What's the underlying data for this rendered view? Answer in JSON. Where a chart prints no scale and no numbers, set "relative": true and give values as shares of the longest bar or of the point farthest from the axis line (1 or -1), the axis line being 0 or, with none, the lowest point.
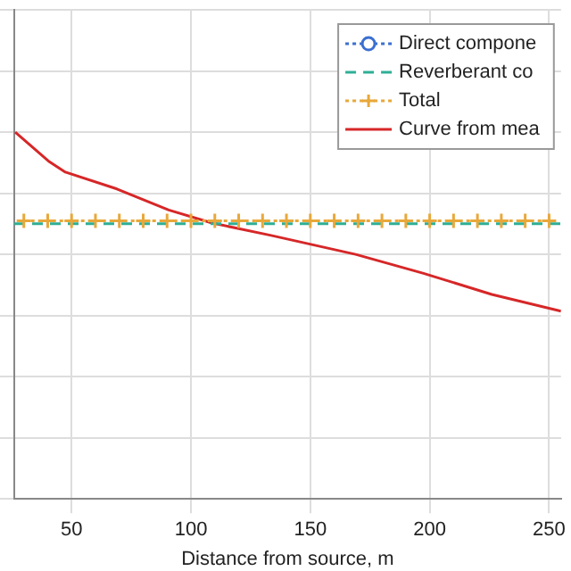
{
  "chart_data": {
    "type": "line",
    "relative": true,
    "xlabel": "Distance from source, m",
    "xlim": [
      26,
      255
    ],
    "xticks": [
      50,
      100,
      150,
      200,
      250
    ],
    "grid": true,
    "legend": "top right",
    "series": [
      {
        "name": "Direct compone",
        "color": "#3b6fd0",
        "marker": "circle",
        "line_style": "dotted"
      },
      {
        "name": "Reverberant co",
        "color": "#2fae95",
        "marker": "none",
        "line_style": "dashed",
        "x": [
          26,
          255
        ],
        "values": [
          0.7,
          0.7
        ]
      },
      {
        "name": "Total",
        "color": "#e8a83a",
        "marker": "cross",
        "line_style": "dotted",
        "x": [
          30,
          40,
          50,
          60,
          70,
          80,
          90,
          100,
          110,
          120,
          130,
          140,
          150,
          160,
          170,
          180,
          190,
          200,
          210,
          220,
          230,
          240,
          250
        ],
        "values": [
          0.71,
          0.71,
          0.71,
          0.71,
          0.71,
          0.71,
          0.71,
          0.71,
          0.71,
          0.71,
          0.71,
          0.71,
          0.71,
          0.71,
          0.71,
          0.71,
          0.71,
          0.71,
          0.71,
          0.71,
          0.71,
          0.71,
          0.71
        ]
      },
      {
        "name": "Curve from mea",
        "color": "#d62728",
        "marker": "none",
        "line_style": "solid",
        "x": [
          26.4,
          40.7,
          47.4,
          69,
          90.7,
          108.6,
          133.6,
          169,
          197.4,
          226,
          255
        ],
        "values": [
          1,
          0.903,
          0.869,
          0.814,
          0.745,
          0.703,
          0.662,
          0.6,
          0.538,
          0.469,
          0.414
        ]
      }
    ]
  }
}
